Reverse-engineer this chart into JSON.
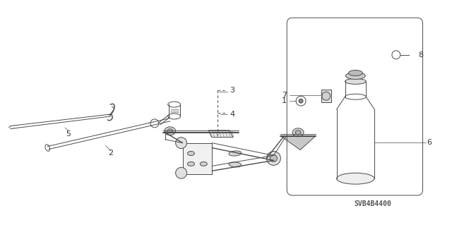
{
  "background_color": "#ffffff",
  "line_color": "#4a4a4a",
  "text_color": "#333333",
  "part_number_text": "SVB4B4400",
  "label_fontsize": 8,
  "part_num_fontsize": 7
}
